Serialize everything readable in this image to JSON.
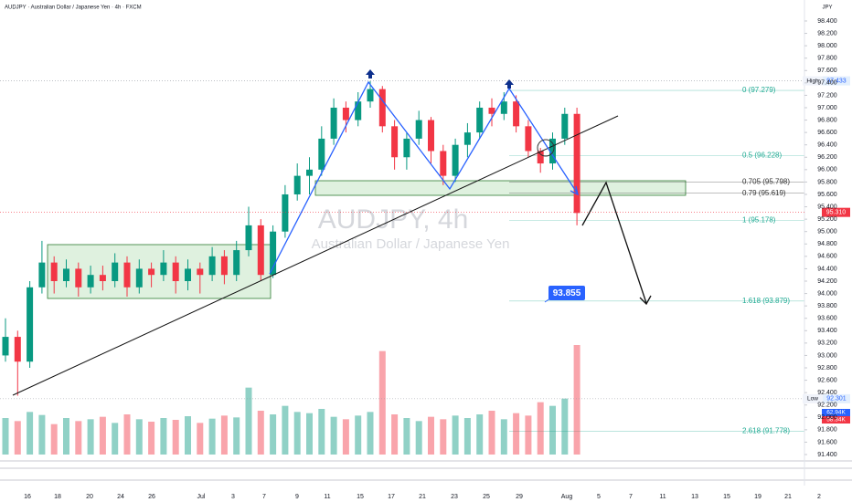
{
  "chart_data": {
    "type": "candlestick",
    "title": "AUDJPY · Australian Dollar / Japanese Yen · 4h · FXCM",
    "currency": "JPY",
    "watermark": "AUDJPY, 4h",
    "watermark_subtitle": "Australian Dollar / Japanese Yen",
    "up_color": "#089981",
    "down_color": "#f23645",
    "open": [
      93.0,
      93.3,
      92.9,
      94.1,
      94.5,
      94.2,
      94.4,
      94.1,
      94.3,
      94.2,
      94.5,
      94.1,
      94.4,
      94.3,
      94.5,
      94.2,
      94.4,
      94.3,
      94.6,
      94.3,
      94.7,
      95.1,
      94.3,
      95.0,
      95.6,
      95.9,
      96.0,
      96.5,
      97.0,
      96.8,
      97.1,
      97.3,
      96.7,
      96.2,
      96.5,
      96.8,
      96.3,
      95.9,
      96.4,
      96.6,
      97.0,
      96.9,
      97.1,
      96.7,
      96.3,
      96.1,
      96.5,
      96.9
    ],
    "high": [
      93.6,
      93.4,
      94.2,
      94.85,
      94.6,
      94.55,
      94.5,
      94.45,
      94.45,
      94.65,
      94.6,
      94.55,
      94.5,
      94.7,
      94.6,
      94.55,
      94.5,
      94.75,
      94.7,
      94.85,
      95.4,
      95.2,
      95.1,
      95.75,
      96.1,
      96.2,
      96.7,
      97.15,
      97.1,
      97.25,
      97.43,
      97.35,
      96.8,
      96.6,
      96.95,
      96.85,
      96.4,
      96.5,
      96.75,
      97.1,
      97.15,
      97.25,
      97.2,
      96.8,
      96.35,
      96.6,
      97.0,
      97.0
    ],
    "low": [
      92.9,
      92.35,
      92.8,
      94.0,
      94.0,
      94.1,
      93.95,
      94.0,
      94.05,
      94.1,
      93.95,
      94.0,
      94.1,
      94.2,
      94.0,
      94.05,
      94.0,
      94.2,
      94.15,
      94.2,
      94.6,
      94.2,
      94.25,
      94.9,
      95.5,
      95.6,
      95.9,
      96.4,
      96.6,
      96.7,
      97.0,
      96.6,
      96.0,
      96.0,
      96.4,
      96.1,
      95.75,
      95.8,
      96.2,
      96.5,
      96.7,
      96.8,
      96.6,
      96.2,
      95.95,
      96.0,
      96.4,
      95.1
    ],
    "close": [
      93.3,
      92.9,
      94.1,
      94.5,
      94.2,
      94.4,
      94.1,
      94.3,
      94.2,
      94.5,
      94.1,
      94.4,
      94.3,
      94.5,
      94.2,
      94.4,
      94.3,
      94.6,
      94.3,
      94.7,
      95.1,
      94.3,
      95.0,
      95.6,
      95.9,
      96.0,
      96.5,
      97.0,
      96.8,
      97.1,
      97.3,
      96.7,
      96.2,
      96.5,
      96.8,
      96.3,
      95.9,
      96.4,
      96.6,
      97.0,
      96.9,
      97.1,
      96.7,
      96.3,
      96.1,
      96.5,
      96.9,
      95.3
    ],
    "volume": [
      60,
      55,
      70,
      65,
      50,
      60,
      55,
      58,
      62,
      52,
      66,
      58,
      54,
      60,
      57,
      63,
      52,
      59,
      64,
      61,
      110,
      72,
      66,
      80,
      70,
      68,
      75,
      62,
      58,
      64,
      70,
      170,
      66,
      60,
      55,
      62,
      58,
      64,
      60,
      66,
      72,
      58,
      68,
      64,
      86,
      80,
      92,
      180
    ],
    "x_labels": [
      "16",
      "18",
      "20",
      "24",
      "26",
      "Jul",
      "3",
      "7",
      "9",
      "11",
      "15",
      "17",
      "21",
      "23",
      "25",
      "29",
      "Aug",
      "5",
      "7",
      "11",
      "13",
      "15",
      "19",
      "21",
      "2"
    ],
    "ylim": [
      91.3,
      98.6
    ],
    "yticks": [
      {
        "value": 98.4,
        "label": "98.400"
      },
      {
        "value": 98.2,
        "label": "98.200"
      },
      {
        "value": 98.0,
        "label": "98.000"
      },
      {
        "value": 97.8,
        "label": "97.800"
      },
      {
        "value": 97.6,
        "label": "97.600"
      },
      {
        "value": 97.4,
        "label": "97.400"
      },
      {
        "value": 97.2,
        "label": "97.200"
      },
      {
        "value": 97.0,
        "label": "97.000"
      },
      {
        "value": 96.8,
        "label": "96.800"
      },
      {
        "value": 96.6,
        "label": "96.600"
      },
      {
        "value": 96.4,
        "label": "96.400"
      },
      {
        "value": 96.2,
        "label": "96.200"
      },
      {
        "value": 96.0,
        "label": "96.000"
      },
      {
        "value": 95.8,
        "label": "95.800"
      },
      {
        "value": 95.6,
        "label": "95.600"
      },
      {
        "value": 95.4,
        "label": "95.400"
      },
      {
        "value": 95.2,
        "label": "95.200"
      },
      {
        "value": 95.0,
        "label": "95.000"
      },
      {
        "value": 94.8,
        "label": "94.800"
      },
      {
        "value": 94.6,
        "label": "94.600"
      },
      {
        "value": 94.4,
        "label": "94.400"
      },
      {
        "value": 94.2,
        "label": "94.200"
      },
      {
        "value": 94.0,
        "label": "94.000"
      },
      {
        "value": 93.8,
        "label": "93.800"
      },
      {
        "value": 93.6,
        "label": "93.600"
      },
      {
        "value": 93.4,
        "label": "93.400"
      },
      {
        "value": 93.2,
        "label": "93.200"
      },
      {
        "value": 93.0,
        "label": "93.000"
      },
      {
        "value": 92.8,
        "label": "92.800"
      },
      {
        "value": 92.6,
        "label": "92.600"
      },
      {
        "value": 92.4,
        "label": "92.400"
      },
      {
        "value": 92.2,
        "label": "92.200"
      },
      {
        "value": 92.0,
        "label": "92.000"
      },
      {
        "value": 91.8,
        "label": "91.800"
      },
      {
        "value": 91.6,
        "label": "91.600"
      },
      {
        "value": 91.4,
        "label": "91.400"
      }
    ],
    "fib_levels": [
      {
        "label": "0 (97.279)",
        "value": 97.279,
        "color": "#22ab94"
      },
      {
        "label": "0.5 (96.228)",
        "value": 96.228,
        "color": "#22ab94"
      },
      {
        "label": "0.705 (95.798)",
        "value": 95.798,
        "color": "#333333"
      },
      {
        "label": "0.79 (95.619)",
        "value": 95.619,
        "color": "#333333"
      },
      {
        "label": "1 (95.178)",
        "value": 95.178,
        "color": "#22ab94"
      },
      {
        "label": "1.618 (93.879)",
        "value": 93.879,
        "color": "#22ab94"
      },
      {
        "label": "2.618 (91.778)",
        "value": 91.778,
        "color": "#22ab94"
      }
    ],
    "high_marker": {
      "name": "High",
      "value": 97.433
    },
    "low_marker": {
      "name": "Low",
      "value": 92.301
    },
    "last_price": {
      "value": 95.31,
      "label": "95.310"
    },
    "volume_ma_labels": [
      "62.94K",
      "58.34K"
    ],
    "target_label": "93.855"
  }
}
